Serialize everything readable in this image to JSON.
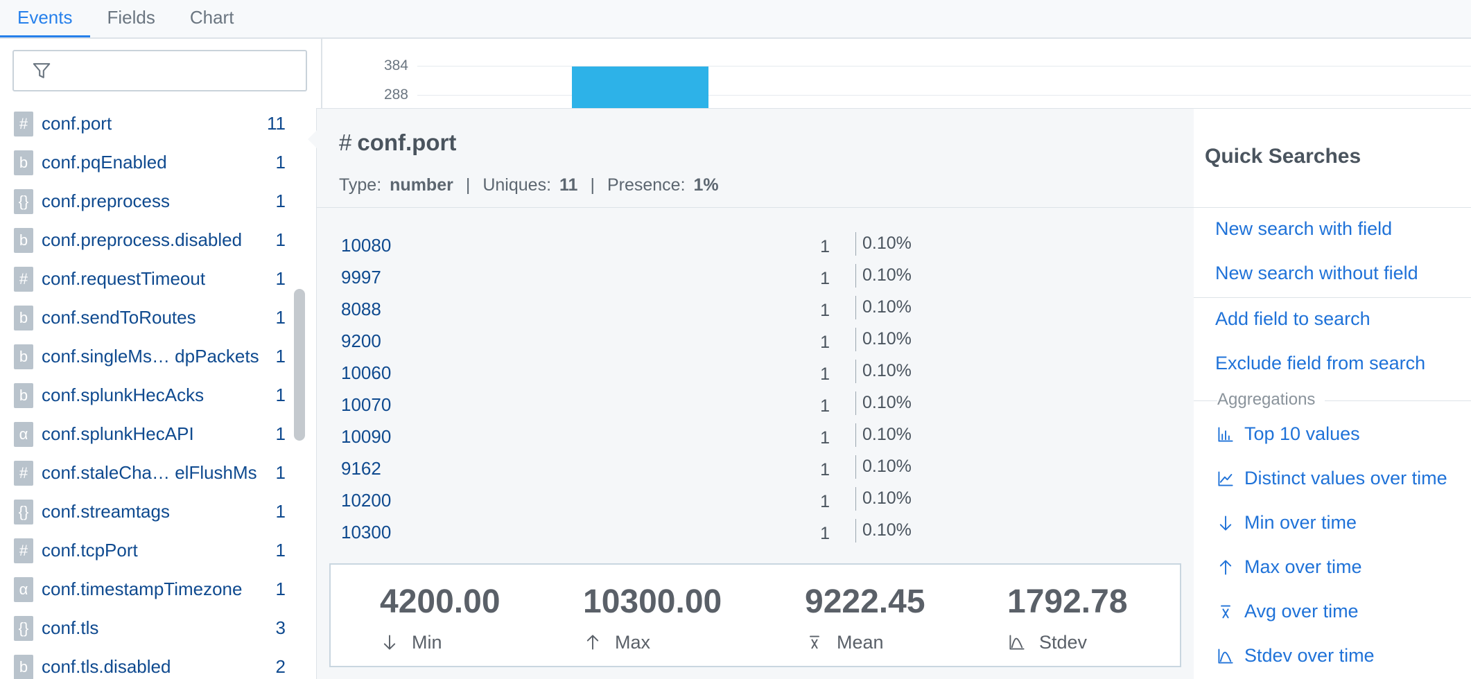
{
  "tabs": [
    "Events",
    "Fields",
    "Chart"
  ],
  "histogram": {
    "yticks": [
      "384",
      "288"
    ]
  },
  "fields": [
    {
      "icon": "#",
      "name": "conf.port",
      "count": "11"
    },
    {
      "icon": "b",
      "name": "conf.pqEnabled",
      "count": "1"
    },
    {
      "icon": "{}",
      "name": "conf.preprocess",
      "count": "1"
    },
    {
      "icon": "b",
      "name": "conf.preprocess.disabled",
      "count": "1"
    },
    {
      "icon": "#",
      "name": "conf.requestTimeout",
      "count": "1"
    },
    {
      "icon": "b",
      "name": "conf.sendToRoutes",
      "count": "1"
    },
    {
      "icon": "b",
      "name": "conf.singleMs… dpPackets",
      "count": "1"
    },
    {
      "icon": "b",
      "name": "conf.splunkHecAcks",
      "count": "1"
    },
    {
      "icon": "α",
      "name": "conf.splunkHecAPI",
      "count": "1"
    },
    {
      "icon": "#",
      "name": "conf.staleCha… elFlushMs",
      "count": "1"
    },
    {
      "icon": "{}",
      "name": "conf.streamtags",
      "count": "1"
    },
    {
      "icon": "#",
      "name": "conf.tcpPort",
      "count": "1"
    },
    {
      "icon": "α",
      "name": "conf.timestampTimezone",
      "count": "1"
    },
    {
      "icon": "{}",
      "name": "conf.tls",
      "count": "3"
    },
    {
      "icon": "b",
      "name": "conf.tls.disabled",
      "count": "2"
    }
  ],
  "popup": {
    "icon": "#",
    "title": "conf.port",
    "meta": [
      {
        "label": "Type:",
        "value": "number"
      },
      {
        "label": "Uniques:",
        "value": "11"
      },
      {
        "label": "Presence:",
        "value": "1%"
      }
    ],
    "separator": "|",
    "rows": [
      [
        "10080",
        "1",
        "0.10%"
      ],
      [
        "9997",
        "1",
        "0.10%"
      ],
      [
        "8088",
        "1",
        "0.10%"
      ],
      [
        "9200",
        "1",
        "0.10%"
      ],
      [
        "10060",
        "1",
        "0.10%"
      ],
      [
        "10070",
        "1",
        "0.10%"
      ],
      [
        "10090",
        "1",
        "0.10%"
      ],
      [
        "9162",
        "1",
        "0.10%"
      ],
      [
        "10200",
        "1",
        "0.10%"
      ],
      [
        "10300",
        "1",
        "0.10%"
      ]
    ],
    "stats": [
      {
        "value": "4200.00",
        "label": "Min"
      },
      {
        "value": "10300.00",
        "label": "Max"
      },
      {
        "value": "9222.45",
        "label": "Mean"
      },
      {
        "value": "1792.78",
        "label": "Stdev"
      }
    ]
  },
  "quick_searches": {
    "title": "Quick Searches",
    "searches": [
      "New search with field",
      "New search without field",
      "Add field to search",
      "Exclude field from search"
    ],
    "aggregations_title": "Aggregations",
    "aggregations": [
      "Top 10 values",
      "Distinct values over time",
      "Min over time",
      "Max over time",
      "Avg over time",
      "Stdev over time"
    ]
  }
}
